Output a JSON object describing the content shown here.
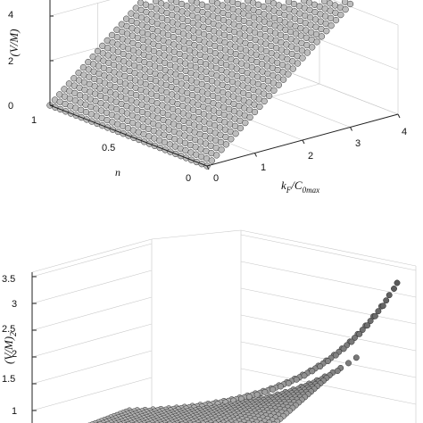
{
  "chart_data": [
    {
      "type": "scatter",
      "title": "",
      "zlabel": "(V/M)",
      "xlabel": "n",
      "ylabel_main": "k",
      "ylabel_sub1": "F",
      "ylabel_mid": "/C",
      "ylabel_sub2": "0max",
      "zticks": [
        "0",
        "2",
        "4"
      ],
      "nticks": [
        "1",
        "0.5",
        "0"
      ],
      "kticks": [
        "0",
        "1",
        "2",
        "3",
        "4"
      ],
      "n_range": [
        0,
        1
      ],
      "k_range": [
        0,
        4
      ],
      "z_range": [
        0,
        4
      ],
      "grid": true,
      "surface_peak_visible": 4.6
    },
    {
      "type": "scatter",
      "title": "",
      "zlabel_main": "(V/M)",
      "zlabel_sub": "2",
      "zticks": [
        "1",
        "1.5",
        "2",
        "2.5",
        "3",
        "3.5"
      ],
      "z_range": [
        0.9,
        3.5
      ],
      "grid": true,
      "max_value": 3.25
    }
  ]
}
